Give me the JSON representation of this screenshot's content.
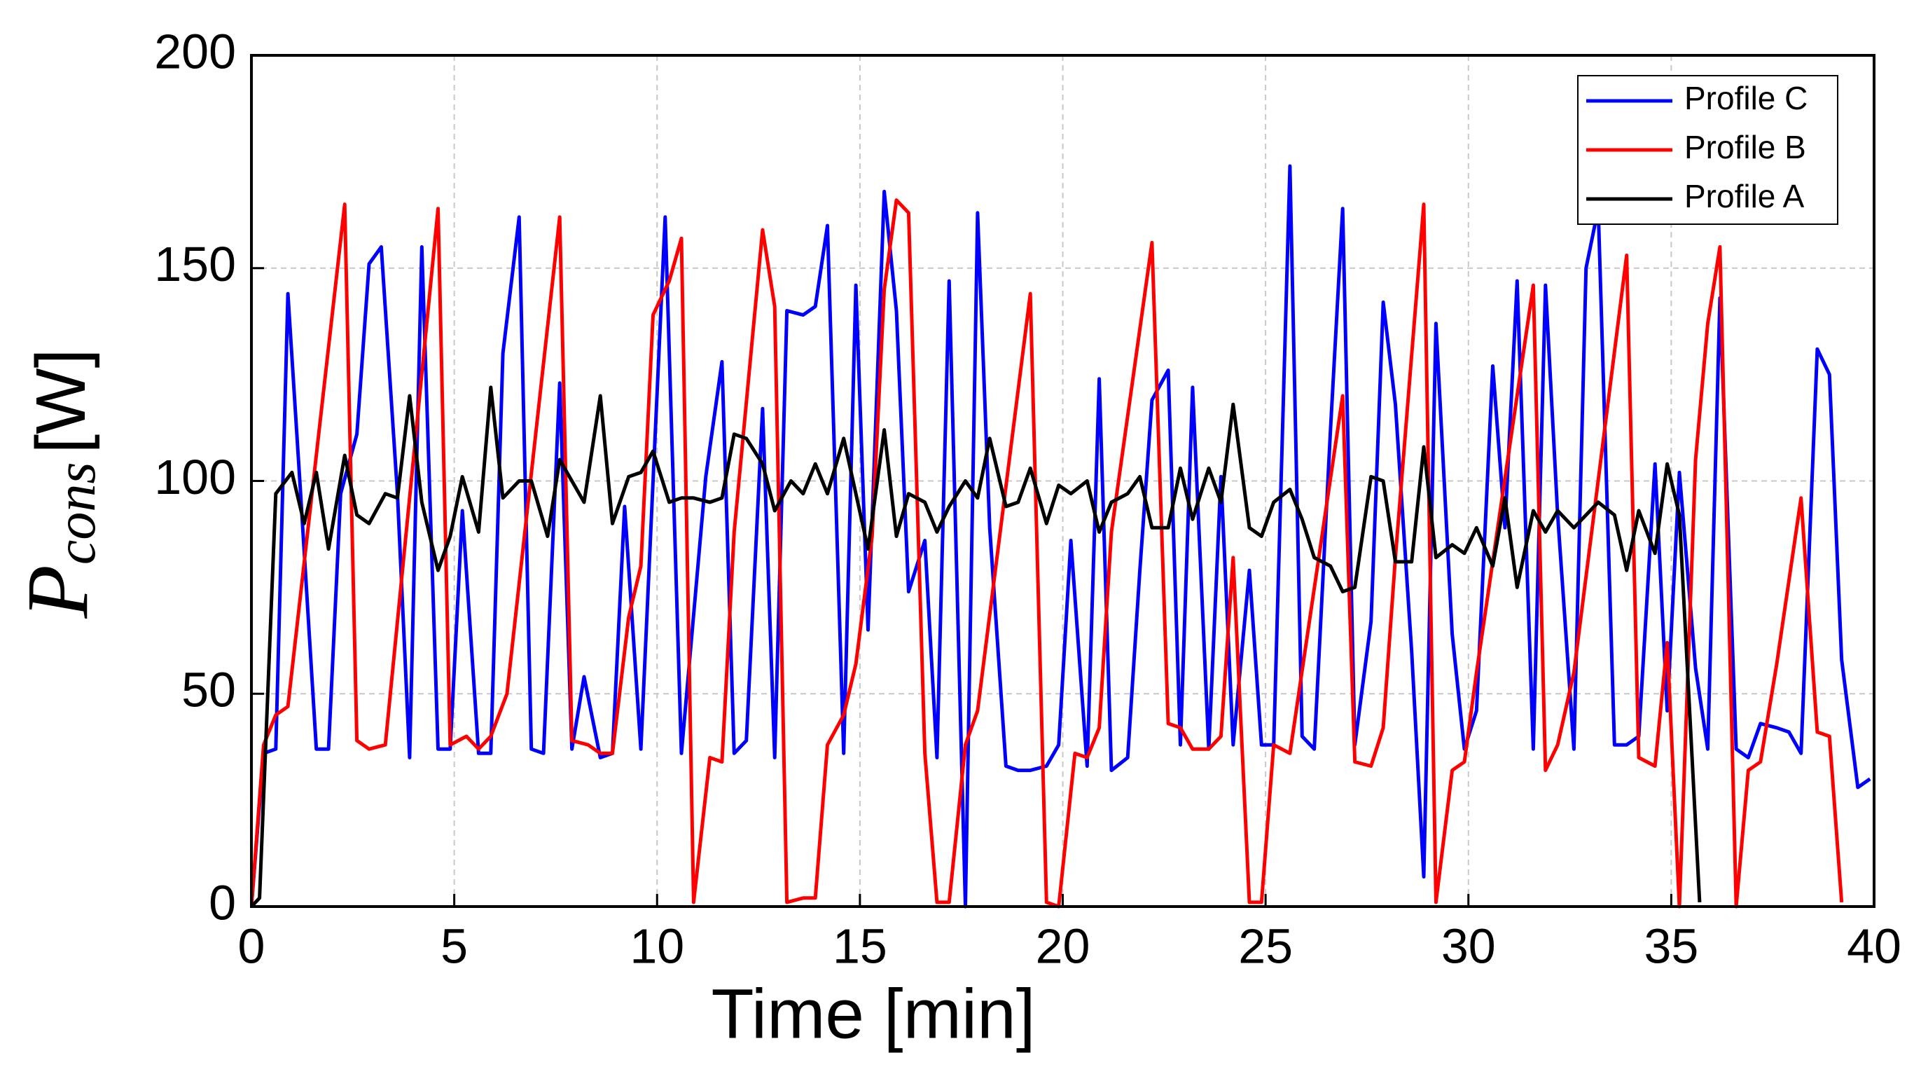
{
  "chart_data": {
    "type": "line",
    "x_label": "Time [min]",
    "y_label": {
      "symbol": "P",
      "subscript": "cons",
      "unit": "[W]"
    },
    "xlim": [
      0,
      40
    ],
    "xticks": [
      0,
      5,
      10,
      15,
      20,
      25,
      30,
      35,
      40
    ],
    "ylim": [
      0,
      200
    ],
    "yticks": [
      0,
      50,
      100,
      150,
      200
    ],
    "grid": true,
    "legend": "upper right",
    "series": [
      {
        "name": "Profile C",
        "color": "#0000ff",
        "x": [
          0,
          0.3,
          0.6,
          0.9,
          1.2,
          1.6,
          1.9,
          2.2,
          2.6,
          2.9,
          3.2,
          3.6,
          3.9,
          4.2,
          4.6,
          4.9,
          5.2,
          5.6,
          5.9,
          6.2,
          6.6,
          6.9,
          7.2,
          7.6,
          7.9,
          8.2,
          8.6,
          8.9,
          9.2,
          9.6,
          9.9,
          10.2,
          10.6,
          11.2,
          11.6,
          11.9,
          12.2,
          12.6,
          12.9,
          13.2,
          13.6,
          13.9,
          14.2,
          14.6,
          14.9,
          15.2,
          15.6,
          15.9,
          16.2,
          16.6,
          16.9,
          17.2,
          17.6,
          17.9,
          18.2,
          18.6,
          18.9,
          19.2,
          19.6,
          19.9,
          20.2,
          20.6,
          20.9,
          21.2,
          21.6,
          21.9,
          22.2,
          22.6,
          22.9,
          23.2,
          23.6,
          23.9,
          24.2,
          24.6,
          24.9,
          25.2,
          25.6,
          25.9,
          26.2,
          26.6,
          26.9,
          27.2,
          27.6,
          27.9,
          28.2,
          28.6,
          28.9,
          29.2,
          29.6,
          29.9,
          30.2,
          30.6,
          30.9,
          31.2,
          31.6,
          31.9,
          32.2,
          32.6,
          32.9,
          33.2,
          33.6,
          33.9,
          34.2,
          34.6,
          34.9,
          35.2,
          35.6,
          35.9,
          36.2,
          36.6,
          36.9,
          37.2,
          37.6,
          37.9,
          38.2,
          38.6,
          38.9,
          39.2,
          39.6,
          39.9
        ],
        "values": [
          0,
          36,
          37,
          144,
          99,
          37,
          37,
          97,
          111,
          151,
          155,
          97,
          35,
          155,
          37,
          37,
          93,
          36,
          36,
          130,
          162,
          37,
          36,
          123,
          37,
          54,
          35,
          36,
          94,
          37,
          100,
          162,
          36,
          101,
          128,
          36,
          39,
          117,
          35,
          140,
          139,
          141,
          160,
          36,
          146,
          65,
          168,
          140,
          74,
          86,
          35,
          147,
          0,
          163,
          89,
          33,
          32,
          32,
          33,
          38,
          86,
          33,
          124,
          32,
          35,
          79,
          119,
          126,
          38,
          122,
          37,
          101,
          38,
          79,
          38,
          38,
          174,
          40,
          37,
          112,
          164,
          38,
          67,
          142,
          118,
          60,
          7,
          137,
          64,
          37,
          46,
          127,
          89,
          147,
          37,
          146,
          92,
          37,
          150,
          164,
          38,
          38,
          40,
          104,
          46,
          102,
          56,
          37,
          143,
          37,
          35,
          43,
          42,
          41,
          36,
          131,
          125,
          58,
          28,
          30
        ]
      },
      {
        "name": "Profile B",
        "color": "#ff0000",
        "x": [
          0,
          0.3,
          0.6,
          0.9,
          2.3,
          2.6,
          2.9,
          3.3,
          4.6,
          4.9,
          5.3,
          5.6,
          5.9,
          6.3,
          7.6,
          7.9,
          8.3,
          8.6,
          8.9,
          9.3,
          9.6,
          9.9,
          10.3,
          10.6,
          10.9,
          11.3,
          11.6,
          11.9,
          12.6,
          12.9,
          13.2,
          13.6,
          13.9,
          14.2,
          14.6,
          14.9,
          15.3,
          15.6,
          15.9,
          16.2,
          16.6,
          16.9,
          17.2,
          17.6,
          17.9,
          19.2,
          19.6,
          19.9,
          20.3,
          20.6,
          20.9,
          21.2,
          22.2,
          22.6,
          22.9,
          23.2,
          23.6,
          23.9,
          24.2,
          24.6,
          24.9,
          25.2,
          25.6,
          26.9,
          27.2,
          27.6,
          27.9,
          28.2,
          28.9,
          29.2,
          29.6,
          29.9,
          30.2,
          31.6,
          31.9,
          32.2,
          32.6,
          33.9,
          34.2,
          34.6,
          34.9,
          35.2,
          35.6,
          35.9,
          36.2,
          36.6,
          36.9,
          37.2,
          37.6,
          38.2,
          38.6,
          38.9,
          39.2
        ],
        "values": [
          0,
          38,
          45,
          47,
          165,
          39,
          37,
          38,
          164,
          38,
          40,
          37,
          40,
          50,
          162,
          39,
          38,
          36,
          36,
          68,
          80,
          139,
          147,
          157,
          1,
          35,
          34,
          88,
          159,
          141,
          1,
          2,
          2,
          38,
          45,
          57,
          87,
          145,
          166,
          163,
          36,
          1,
          1,
          38,
          46,
          144,
          1,
          0,
          36,
          35,
          42,
          88,
          156,
          43,
          42,
          37,
          37,
          40,
          82,
          1,
          1,
          38,
          36,
          120,
          34,
          33,
          42,
          82,
          165,
          1,
          32,
          34,
          55,
          146,
          32,
          38,
          55,
          153,
          35,
          33,
          62,
          0,
          105,
          137,
          155,
          0,
          32,
          34,
          57,
          96,
          41,
          40,
          1
        ]
      },
      {
        "name": "Profile A",
        "color": "#000000",
        "x": [
          0,
          0.2,
          0.6,
          1,
          1.3,
          1.6,
          1.9,
          2.3,
          2.6,
          2.9,
          3.3,
          3.6,
          3.9,
          4.2,
          4.6,
          4.9,
          5.2,
          5.6,
          5.9,
          6.2,
          6.6,
          6.9,
          7.3,
          7.6,
          7.9,
          8.2,
          8.6,
          8.9,
          9.3,
          9.6,
          9.9,
          10.3,
          10.6,
          10.9,
          11.3,
          11.6,
          11.9,
          12.2,
          12.6,
          12.9,
          13.3,
          13.6,
          13.9,
          14.2,
          14.6,
          14.9,
          15.2,
          15.6,
          15.9,
          16.2,
          16.6,
          16.9,
          17.2,
          17.6,
          17.9,
          18.2,
          18.6,
          18.9,
          19.2,
          19.6,
          19.9,
          20.2,
          20.6,
          20.9,
          21.2,
          21.6,
          21.9,
          22.2,
          22.6,
          22.9,
          23.2,
          23.6,
          23.9,
          24.2,
          24.6,
          24.9,
          25.2,
          25.6,
          25.9,
          26.2,
          26.6,
          26.9,
          27.2,
          27.6,
          27.9,
          28.2,
          28.6,
          28.9,
          29.2,
          29.6,
          29.9,
          30.2,
          30.6,
          30.9,
          31.2,
          31.6,
          31.9,
          32.2,
          32.6,
          32.9,
          33.2,
          33.6,
          33.9,
          34.2,
          34.6,
          34.9,
          35.2,
          35.7
        ],
        "values": [
          0,
          2,
          97,
          102,
          90,
          102,
          84,
          106,
          92,
          90,
          97,
          96,
          120,
          95,
          79,
          87,
          101,
          88,
          122,
          96,
          100,
          100,
          87,
          105,
          100,
          95,
          120,
          90,
          101,
          102,
          107,
          95,
          96,
          96,
          95,
          96,
          111,
          110,
          104,
          93,
          100,
          97,
          104,
          97,
          110,
          97,
          84,
          112,
          87,
          97,
          95,
          88,
          94,
          100,
          96,
          110,
          94,
          95,
          103,
          90,
          99,
          97,
          100,
          88,
          95,
          97,
          101,
          89,
          89,
          103,
          91,
          103,
          95,
          118,
          89,
          87,
          95,
          98,
          91,
          82,
          80,
          74,
          75,
          101,
          100,
          81,
          81,
          108,
          82,
          85,
          83,
          89,
          80,
          96,
          75,
          93,
          88,
          93,
          89,
          92,
          95,
          92,
          79,
          93,
          83,
          104,
          92,
          1
        ]
      }
    ]
  }
}
